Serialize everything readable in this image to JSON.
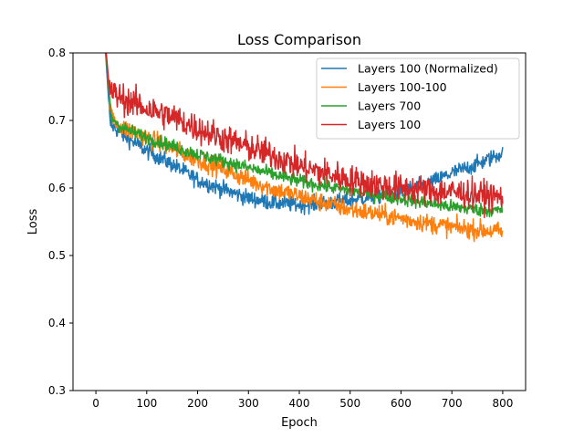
{
  "chart_data": {
    "type": "line",
    "title": "Loss Comparison",
    "xlabel": "Epoch",
    "ylabel": "Loss",
    "xlim": [
      -45,
      845
    ],
    "ylim": [
      0.3,
      0.8
    ],
    "xticks": [
      0,
      100,
      200,
      300,
      400,
      500,
      600,
      700,
      800
    ],
    "yticks": [
      0.3,
      0.4,
      0.5,
      0.6,
      0.7,
      0.8
    ],
    "ytick_labels": [
      "0.3",
      "0.4",
      "0.5",
      "0.6",
      "0.7",
      "0.8"
    ],
    "grid": false,
    "legend_position": "top-right",
    "x_step": 1,
    "x_range": [
      0,
      800
    ],
    "series": [
      {
        "name": "Layers 100 (Normalized)",
        "color": "#1f77b4",
        "noise": 0.006,
        "anchors": [
          [
            0,
            1.0
          ],
          [
            15,
            0.83
          ],
          [
            20,
            0.79
          ],
          [
            28,
            0.695
          ],
          [
            50,
            0.68
          ],
          [
            100,
            0.655
          ],
          [
            150,
            0.635
          ],
          [
            200,
            0.612
          ],
          [
            250,
            0.598
          ],
          [
            300,
            0.585
          ],
          [
            350,
            0.578
          ],
          [
            400,
            0.575
          ],
          [
            450,
            0.577
          ],
          [
            500,
            0.582
          ],
          [
            550,
            0.588
          ],
          [
            600,
            0.595
          ],
          [
            650,
            0.605
          ],
          [
            700,
            0.622
          ],
          [
            750,
            0.635
          ],
          [
            800,
            0.652
          ]
        ]
      },
      {
        "name": "Layers 100-100",
        "color": "#ff7f0e",
        "noise": 0.007,
        "anchors": [
          [
            0,
            1.0
          ],
          [
            15,
            0.84
          ],
          [
            22,
            0.78
          ],
          [
            30,
            0.705
          ],
          [
            50,
            0.69
          ],
          [
            100,
            0.675
          ],
          [
            150,
            0.658
          ],
          [
            200,
            0.642
          ],
          [
            250,
            0.628
          ],
          [
            300,
            0.612
          ],
          [
            350,
            0.598
          ],
          [
            400,
            0.588
          ],
          [
            450,
            0.578
          ],
          [
            500,
            0.568
          ],
          [
            550,
            0.562
          ],
          [
            600,
            0.555
          ],
          [
            650,
            0.548
          ],
          [
            700,
            0.542
          ],
          [
            750,
            0.538
          ],
          [
            800,
            0.535
          ]
        ]
      },
      {
        "name": "Layers 700",
        "color": "#2ca02c",
        "noise": 0.005,
        "anchors": [
          [
            0,
            1.0
          ],
          [
            15,
            0.84
          ],
          [
            22,
            0.78
          ],
          [
            30,
            0.705
          ],
          [
            50,
            0.69
          ],
          [
            100,
            0.675
          ],
          [
            150,
            0.662
          ],
          [
            200,
            0.65
          ],
          [
            250,
            0.64
          ],
          [
            300,
            0.63
          ],
          [
            350,
            0.62
          ],
          [
            400,
            0.61
          ],
          [
            450,
            0.603
          ],
          [
            500,
            0.596
          ],
          [
            550,
            0.59
          ],
          [
            600,
            0.584
          ],
          [
            650,
            0.578
          ],
          [
            700,
            0.572
          ],
          [
            750,
            0.568
          ],
          [
            800,
            0.566
          ]
        ]
      },
      {
        "name": "Layers 100",
        "color": "#d62728",
        "noise": 0.011,
        "anchors": [
          [
            0,
            1.0
          ],
          [
            18,
            0.82
          ],
          [
            25,
            0.76
          ],
          [
            30,
            0.742
          ],
          [
            60,
            0.73
          ],
          [
            100,
            0.718
          ],
          [
            150,
            0.705
          ],
          [
            200,
            0.688
          ],
          [
            250,
            0.674
          ],
          [
            300,
            0.66
          ],
          [
            350,
            0.648
          ],
          [
            400,
            0.632
          ],
          [
            450,
            0.622
          ],
          [
            500,
            0.612
          ],
          [
            550,
            0.605
          ],
          [
            600,
            0.6
          ],
          [
            650,
            0.596
          ],
          [
            700,
            0.594
          ],
          [
            750,
            0.59
          ],
          [
            800,
            0.586
          ]
        ]
      }
    ]
  }
}
